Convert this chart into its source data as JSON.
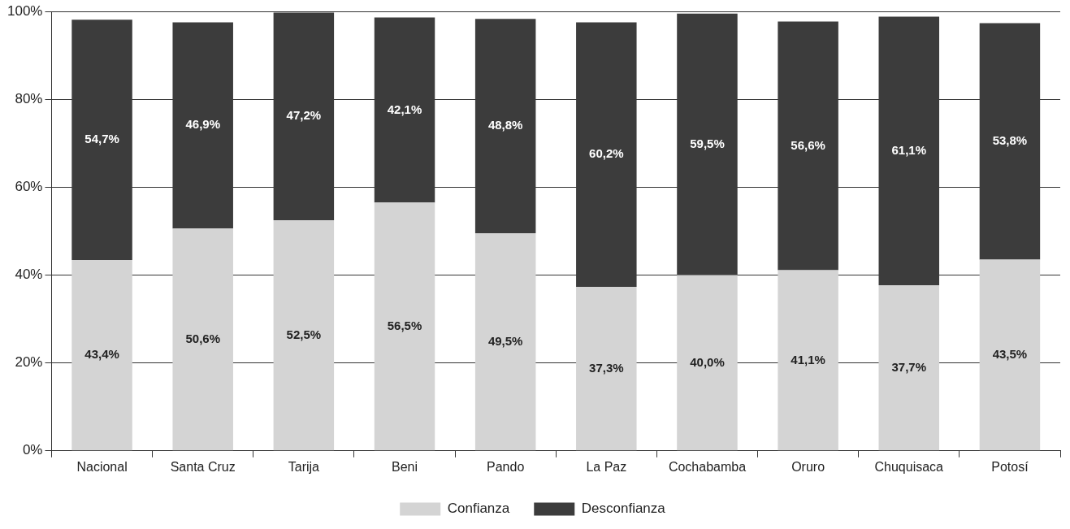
{
  "chart_data": {
    "type": "bar",
    "stacked": true,
    "categories": [
      "Nacional",
      "Santa Cruz",
      "Tarija",
      "Beni",
      "Pando",
      "La Paz",
      "Cochabamba",
      "Oruro",
      "Chuquisaca",
      "Potosí"
    ],
    "series": [
      {
        "name": "Confianza",
        "color": "#d4d4d4",
        "values": [
          43.4,
          50.6,
          52.5,
          56.5,
          49.5,
          37.3,
          40.0,
          41.1,
          37.7,
          43.5
        ],
        "value_labels": [
          "43,4%",
          "50,6%",
          "52,5%",
          "56,5%",
          "49,5%",
          "37,3%",
          "40,0%",
          "41,1%",
          "37,7%",
          "43,5%"
        ]
      },
      {
        "name": "Desconfianza",
        "color": "#3c3c3c",
        "values": [
          54.7,
          46.9,
          47.2,
          42.1,
          48.8,
          60.2,
          59.5,
          56.6,
          61.1,
          53.8
        ],
        "value_labels": [
          "54,7%",
          "46,9%",
          "47,2%",
          "42,1%",
          "48,8%",
          "60,2%",
          "59,5%",
          "56,6%",
          "61,1%",
          "53,8%"
        ]
      }
    ],
    "ylim": [
      0,
      100
    ],
    "yticks": [
      {
        "value": 0,
        "label": "0%"
      },
      {
        "value": 20,
        "label": "20%"
      },
      {
        "value": 40,
        "label": "40%"
      },
      {
        "value": 60,
        "label": "60%"
      },
      {
        "value": 80,
        "label": "80%"
      },
      {
        "value": 100,
        "label": "100%"
      }
    ],
    "grid": "y",
    "legend": "bottom"
  }
}
